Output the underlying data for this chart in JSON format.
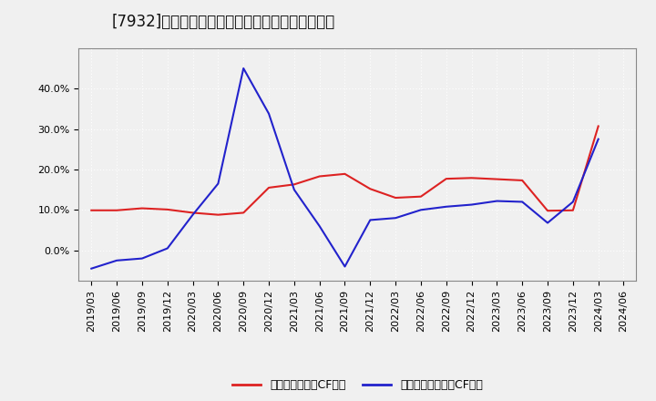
{
  "title": "[7932]　有利子負債キャッシュフロー比率の推移",
  "legend_red": "有利子負債営業CF比率",
  "legend_blue": "有利子負債フリーCF比率",
  "x_labels": [
    "2019/03",
    "2019/06",
    "2019/09",
    "2019/12",
    "2020/03",
    "2020/06",
    "2020/09",
    "2020/12",
    "2021/03",
    "2021/06",
    "2021/09",
    "2021/12",
    "2022/03",
    "2022/06",
    "2022/09",
    "2022/12",
    "2023/03",
    "2023/06",
    "2023/09",
    "2023/12",
    "2024/03",
    "2024/06"
  ],
  "red_values": [
    0.099,
    0.099,
    0.104,
    0.101,
    0.093,
    0.088,
    0.093,
    0.155,
    0.163,
    0.183,
    0.189,
    0.152,
    0.13,
    0.133,
    0.177,
    0.179,
    0.176,
    0.173,
    0.098,
    0.099,
    0.307,
    null
  ],
  "blue_values": [
    -0.045,
    -0.025,
    -0.02,
    0.005,
    0.088,
    0.165,
    0.45,
    0.338,
    0.15,
    0.06,
    -0.04,
    0.075,
    0.08,
    0.1,
    0.108,
    0.113,
    0.122,
    0.12,
    0.068,
    0.12,
    0.275,
    null
  ],
  "ylim_min": -0.075,
  "ylim_max": 0.5,
  "yticks": [
    0.0,
    0.1,
    0.2,
    0.3,
    0.4
  ],
  "red_color": "#dd2222",
  "blue_color": "#2222cc",
  "figure_bg": "#f0f0f0",
  "plot_bg": "#f0f0f0",
  "grid_color": "#ffffff",
  "border_color": "#888888",
  "title_fontsize": 12,
  "axis_fontsize": 8,
  "legend_fontsize": 9
}
